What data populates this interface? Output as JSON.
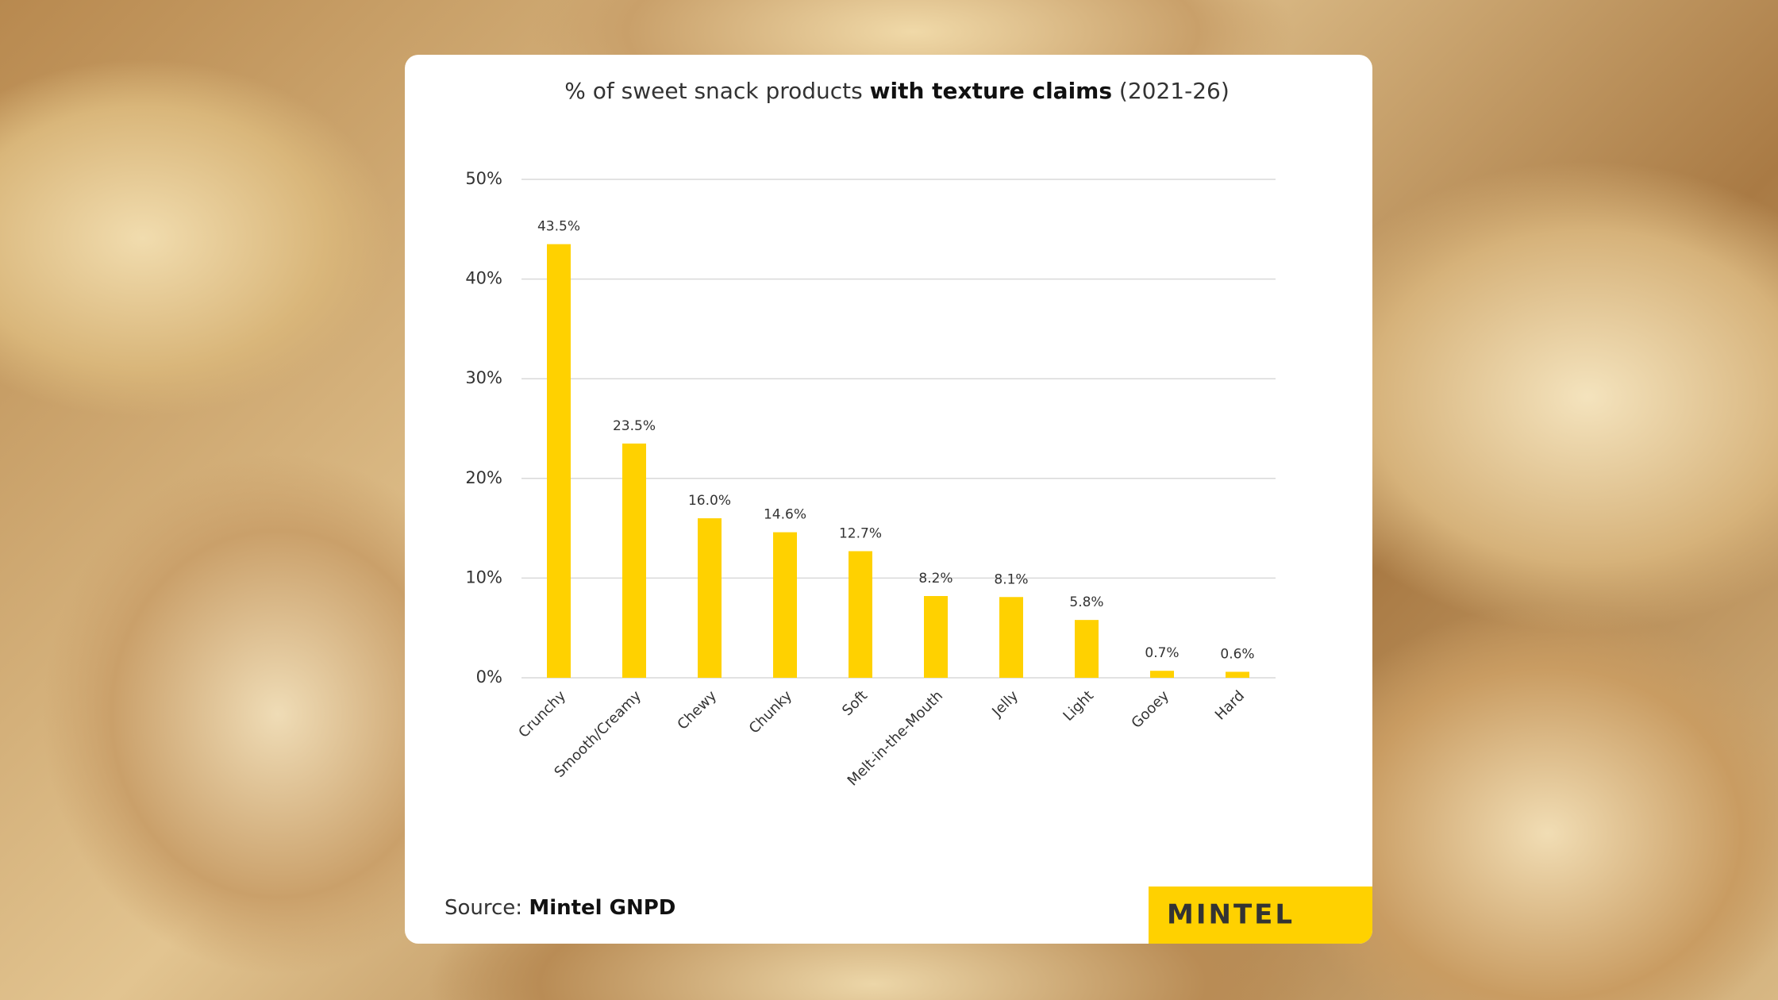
{
  "chart_data": {
    "type": "bar",
    "title_parts": [
      "% of sweet snack products ",
      "with texture claims",
      " (2021-26)"
    ],
    "categories": [
      "Crunchy",
      "Smooth/Creamy",
      "Chewy",
      "Chunky",
      "Soft",
      "Melt-in-the-Mouth",
      "Jelly",
      "Light",
      "Gooey",
      "Hard"
    ],
    "values": [
      43.5,
      23.5,
      16.0,
      14.6,
      12.7,
      8.2,
      8.1,
      5.8,
      0.7,
      0.6
    ],
    "value_labels": [
      "43.5%",
      "23.5%",
      "16.0%",
      "14.6%",
      "12.7%",
      "8.2%",
      "8.1%",
      "5.8%",
      "0.7%",
      "0.6%"
    ],
    "color": "#ffd100",
    "ylim": [
      0,
      50
    ],
    "yticks": [
      {
        "value": 0,
        "label": "0%"
      },
      {
        "value": 10,
        "label": "10%"
      },
      {
        "value": 20,
        "label": "20%"
      },
      {
        "value": 30,
        "label": "30%"
      },
      {
        "value": 40,
        "label": "40%"
      },
      {
        "value": 50,
        "label": "50%"
      }
    ],
    "grid": true
  },
  "source": {
    "prefix": "Source: ",
    "name": "Mintel GNPD"
  },
  "logo": "MINTEL"
}
